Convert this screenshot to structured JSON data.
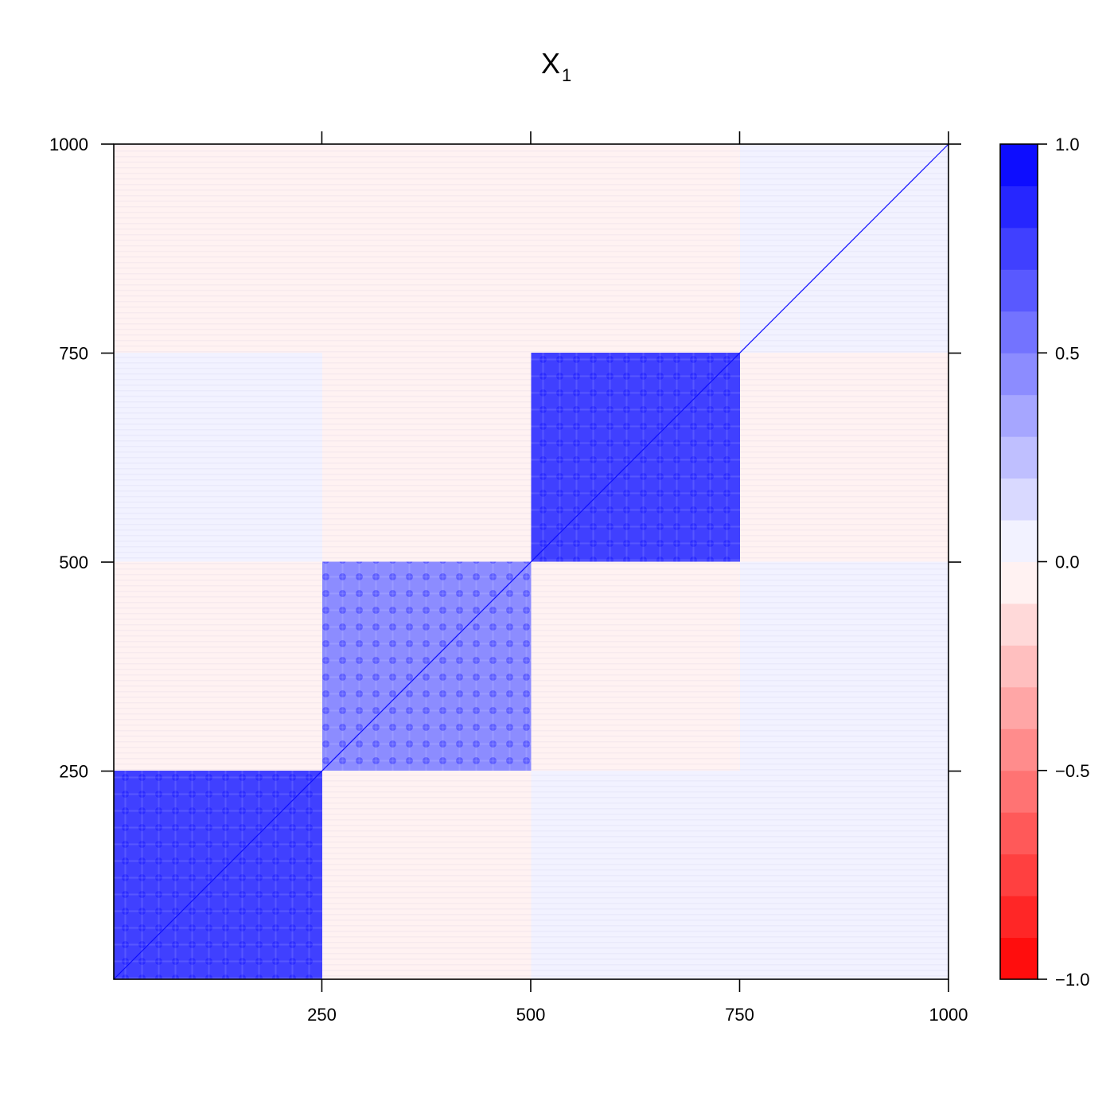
{
  "chart_data": {
    "type": "heatmap",
    "title": "X",
    "title_subscript": "1",
    "xlim": [
      1,
      1000
    ],
    "ylim": [
      1,
      1000
    ],
    "x_ticks": [
      "250",
      "500",
      "750",
      "1000"
    ],
    "y_ticks": [
      "250",
      "500",
      "750",
      "1000"
    ],
    "colorbar": {
      "range": [
        -1.0,
        1.0
      ],
      "tick_labels": [
        "−1.0",
        "−0.5",
        "0.0",
        "0.5",
        "1.0"
      ],
      "tick_values": [
        -1.0,
        -0.5,
        0.0,
        0.5,
        1.0
      ],
      "levels": 20,
      "low_color": "#ff0000",
      "mid_color": "#ffffff",
      "high_color": "#0000ff"
    },
    "blocks": [
      {
        "rows": [
          1,
          250
        ],
        "cols": [
          1,
          250
        ],
        "value": 0.78
      },
      {
        "rows": [
          251,
          500
        ],
        "cols": [
          251,
          500
        ],
        "value": 0.42
      },
      {
        "rows": [
          501,
          750
        ],
        "cols": [
          501,
          750
        ],
        "value": 0.78
      },
      {
        "rows": [
          751,
          1000
        ],
        "cols": [
          751,
          1000
        ],
        "value": 0.05
      },
      {
        "rows": [
          501,
          750
        ],
        "cols": [
          1,
          250
        ],
        "value": 0.06
      },
      {
        "rows": [
          1,
          250
        ],
        "cols": [
          501,
          750
        ],
        "value": 0.06
      },
      {
        "rows": [
          1,
          250
        ],
        "cols": [
          251,
          500
        ],
        "value": -0.03
      },
      {
        "rows": [
          251,
          500
        ],
        "cols": [
          1,
          250
        ],
        "value": -0.03
      },
      {
        "rows": [
          751,
          1000
        ],
        "cols": [
          1,
          250
        ],
        "value": -0.02
      },
      {
        "rows": [
          751,
          1000
        ],
        "cols": [
          251,
          500
        ],
        "value": -0.02
      },
      {
        "rows": [
          751,
          1000
        ],
        "cols": [
          501,
          750
        ],
        "value": -0.02
      },
      {
        "rows": [
          501,
          750
        ],
        "cols": [
          251,
          500
        ],
        "value": -0.02
      },
      {
        "rows": [
          251,
          500
        ],
        "cols": [
          501,
          750
        ],
        "value": -0.02
      },
      {
        "rows": [
          501,
          750
        ],
        "cols": [
          751,
          1000
        ],
        "value": -0.02
      },
      {
        "rows": [
          251,
          500
        ],
        "cols": [
          751,
          1000
        ],
        "value": 0.02
      },
      {
        "rows": [
          1,
          250
        ],
        "cols": [
          751,
          1000
        ],
        "value": 0.02
      }
    ],
    "diagonal_value": 1.0
  }
}
